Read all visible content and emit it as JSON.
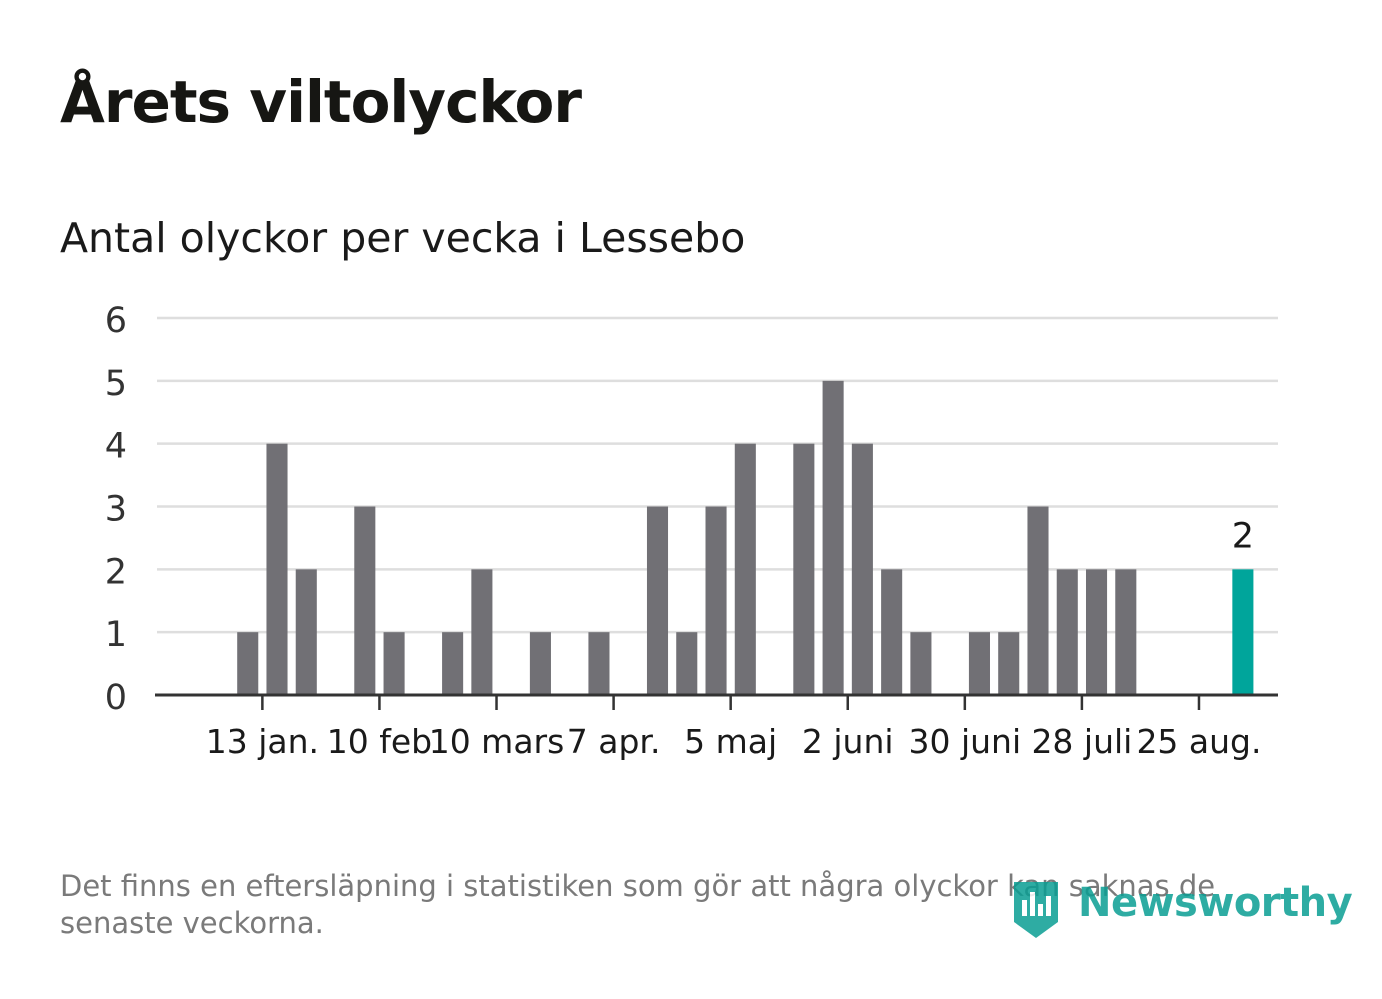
{
  "title": "Årets viltolyckor",
  "subtitle": "Antal olyckor per vecka i Lessebo",
  "note": "Det finns en eftersläpning i statistiken som gör att några olyckor kan saknas de senaste veckorna.",
  "brand": "Newsworthy",
  "colors": {
    "bar": "#717075",
    "highlight": "#00a59b",
    "grid": "#dedede",
    "axis": "#333333"
  },
  "chart_data": {
    "type": "bar",
    "ylim": [
      0,
      6
    ],
    "yticks": [
      0,
      1,
      2,
      3,
      4,
      5,
      6
    ],
    "grid": true,
    "xtick_labels": [
      "13 jan.",
      "10 feb",
      "10 mars",
      "7 apr.",
      "5 maj",
      "2 juni",
      "30 juni",
      "28 juli",
      "25 aug."
    ],
    "xtick_positions": [
      2.5,
      6.5,
      10.5,
      14.5,
      18.5,
      22.5,
      26.5,
      30.5,
      34.5
    ],
    "values": [
      0,
      0,
      1,
      4,
      2,
      0,
      3,
      1,
      0,
      1,
      2,
      0,
      1,
      0,
      1,
      0,
      3,
      1,
      3,
      4,
      0,
      4,
      5,
      4,
      2,
      1,
      0,
      1,
      1,
      3,
      2,
      2,
      2,
      0,
      0,
      0,
      2
    ],
    "highlight_index": 36,
    "highlight_label": "2"
  }
}
